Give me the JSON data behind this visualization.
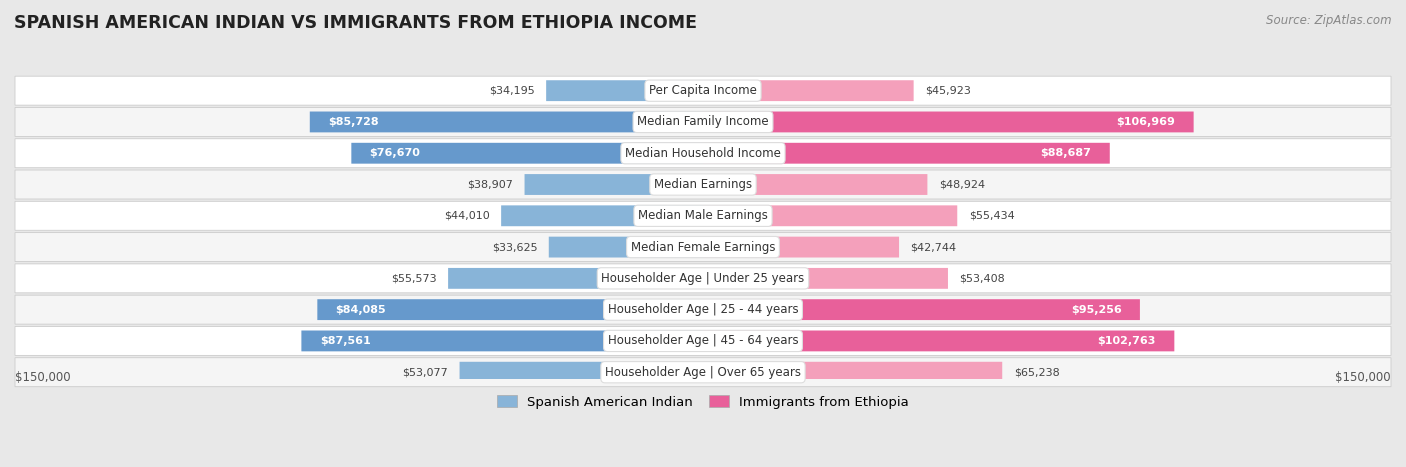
{
  "title": "SPANISH AMERICAN INDIAN VS IMMIGRANTS FROM ETHIOPIA INCOME",
  "source": "Source: ZipAtlas.com",
  "categories": [
    "Per Capita Income",
    "Median Family Income",
    "Median Household Income",
    "Median Earnings",
    "Median Male Earnings",
    "Median Female Earnings",
    "Householder Age | Under 25 years",
    "Householder Age | 25 - 44 years",
    "Householder Age | 45 - 64 years",
    "Householder Age | Over 65 years"
  ],
  "left_values": [
    34195,
    85728,
    76670,
    38907,
    44010,
    33625,
    55573,
    84085,
    87561,
    53077
  ],
  "right_values": [
    45923,
    106969,
    88687,
    48924,
    55434,
    42744,
    53408,
    95256,
    102763,
    65238
  ],
  "left_labels": [
    "$34,195",
    "$85,728",
    "$76,670",
    "$38,907",
    "$44,010",
    "$33,625",
    "$55,573",
    "$84,085",
    "$87,561",
    "$53,077"
  ],
  "right_labels": [
    "$45,923",
    "$106,969",
    "$88,687",
    "$48,924",
    "$55,434",
    "$42,744",
    "$53,408",
    "$95,256",
    "$102,763",
    "$65,238"
  ],
  "left_color": "#88b4d8",
  "right_color": "#f4a0bb",
  "left_color_bold": "#6699cc",
  "right_color_bold": "#e8609a",
  "left_label_inside": [
    false,
    true,
    true,
    false,
    false,
    false,
    false,
    true,
    true,
    false
  ],
  "right_label_inside": [
    false,
    true,
    true,
    false,
    false,
    false,
    false,
    true,
    true,
    false
  ],
  "max_val": 150000,
  "legend_left": "Spanish American Indian",
  "legend_right": "Immigrants from Ethiopia",
  "bg_color": "#e8e8e8",
  "row_bg_even": "#f5f5f5",
  "row_bg_odd": "#ffffff"
}
